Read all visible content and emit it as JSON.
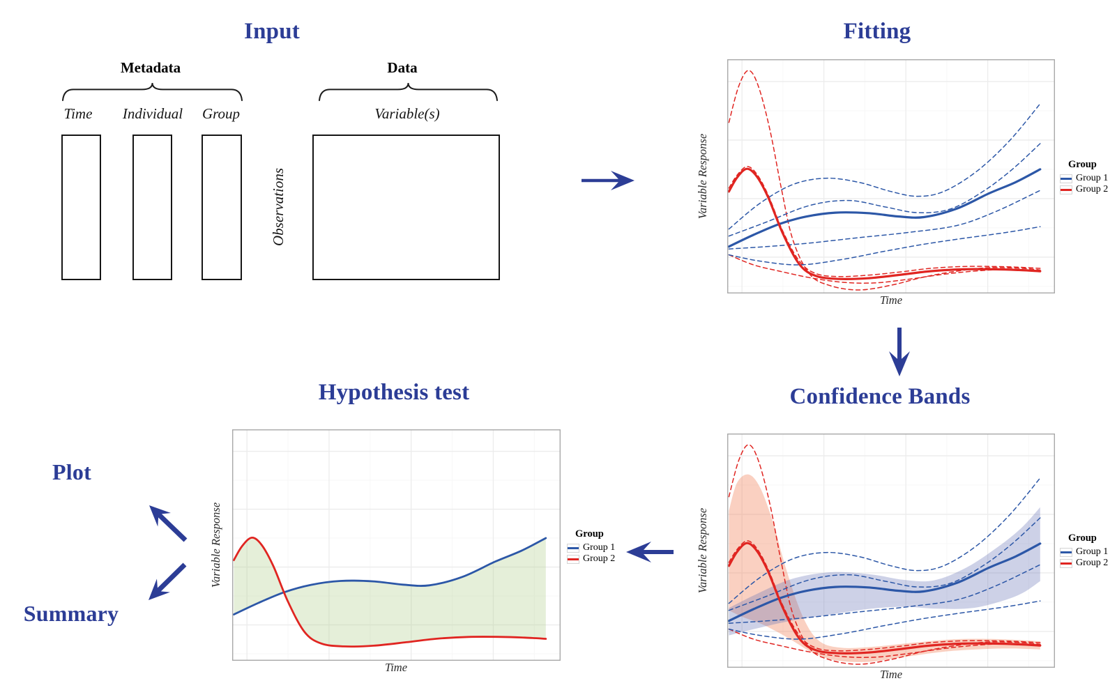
{
  "palette": {
    "navy": "#2c3d96",
    "blue": "#2c57a7",
    "red": "#e02521",
    "blue_band": "rgba(99,111,180,0.32)",
    "red_band": "rgba(243,132,92,0.38)",
    "green_fill": "rgba(173,204,138,0.32)",
    "panel_border": "#a8a8a8",
    "grid_major": "#ececec",
    "grid_minor": "#f7f7f7"
  },
  "titles": {
    "input": "Input",
    "fitting": "Fitting",
    "confidence": "Confidence Bands",
    "hypothesis": "Hypothesis test",
    "plot": "Plot",
    "summary": "Summary"
  },
  "input": {
    "metadata_label": "Metadata",
    "data_label": "Data",
    "columns": [
      "Time",
      "Individual",
      "Group"
    ],
    "variables_label": "Variable(s)",
    "observations_label": "Observations"
  },
  "charts": {
    "axis": {
      "x": "Time",
      "y": "Variable Response"
    },
    "legend": {
      "title": "Group",
      "items": [
        {
          "label": "Group 1",
          "color": "#2c57a7"
        },
        {
          "label": "Group 2",
          "color": "#e02521"
        }
      ]
    }
  },
  "curves": {
    "blue_mean": [
      [
        0.005,
        0.8
      ],
      [
        0.08,
        0.75
      ],
      [
        0.16,
        0.703
      ],
      [
        0.24,
        0.672
      ],
      [
        0.33,
        0.655
      ],
      [
        0.43,
        0.657
      ],
      [
        0.52,
        0.671
      ],
      [
        0.6,
        0.674
      ],
      [
        0.7,
        0.638
      ],
      [
        0.8,
        0.572
      ],
      [
        0.88,
        0.525
      ],
      [
        0.955,
        0.47
      ]
    ],
    "red_mean": [
      [
        0.005,
        0.565
      ],
      [
        0.03,
        0.505
      ],
      [
        0.06,
        0.468
      ],
      [
        0.09,
        0.5
      ],
      [
        0.125,
        0.59
      ],
      [
        0.17,
        0.745
      ],
      [
        0.22,
        0.875
      ],
      [
        0.27,
        0.925
      ],
      [
        0.34,
        0.938
      ],
      [
        0.43,
        0.935
      ],
      [
        0.53,
        0.92
      ],
      [
        0.62,
        0.905
      ],
      [
        0.72,
        0.897
      ],
      [
        0.82,
        0.897
      ],
      [
        0.89,
        0.9
      ],
      [
        0.955,
        0.905
      ]
    ],
    "blue_ind_1": [
      [
        0.005,
        0.725
      ],
      [
        0.1,
        0.615
      ],
      [
        0.2,
        0.535
      ],
      [
        0.3,
        0.508
      ],
      [
        0.4,
        0.525
      ],
      [
        0.5,
        0.565
      ],
      [
        0.58,
        0.585
      ],
      [
        0.66,
        0.565
      ],
      [
        0.76,
        0.48
      ],
      [
        0.86,
        0.35
      ],
      [
        0.955,
        0.19
      ]
    ],
    "blue_ind_2": [
      [
        0.005,
        0.755
      ],
      [
        0.12,
        0.695
      ],
      [
        0.25,
        0.625
      ],
      [
        0.37,
        0.603
      ],
      [
        0.48,
        0.63
      ],
      [
        0.58,
        0.655
      ],
      [
        0.68,
        0.64
      ],
      [
        0.78,
        0.565
      ],
      [
        0.87,
        0.47
      ],
      [
        0.955,
        0.36
      ]
    ],
    "blue_ind_3": [
      [
        0.005,
        0.81
      ],
      [
        0.12,
        0.8
      ],
      [
        0.25,
        0.785
      ],
      [
        0.4,
        0.762
      ],
      [
        0.55,
        0.74
      ],
      [
        0.7,
        0.71
      ],
      [
        0.82,
        0.65
      ],
      [
        0.955,
        0.56
      ]
    ],
    "blue_ind_4": [
      [
        0.005,
        0.835
      ],
      [
        0.1,
        0.862
      ],
      [
        0.22,
        0.878
      ],
      [
        0.35,
        0.855
      ],
      [
        0.48,
        0.82
      ],
      [
        0.6,
        0.79
      ],
      [
        0.72,
        0.765
      ],
      [
        0.85,
        0.74
      ],
      [
        0.955,
        0.715
      ]
    ],
    "red_ind_1": [
      [
        0.005,
        0.27
      ],
      [
        0.035,
        0.115
      ],
      [
        0.065,
        0.048
      ],
      [
        0.095,
        0.115
      ],
      [
        0.13,
        0.3
      ],
      [
        0.165,
        0.55
      ],
      [
        0.2,
        0.77
      ],
      [
        0.25,
        0.915
      ],
      [
        0.31,
        0.965
      ],
      [
        0.4,
        0.985
      ],
      [
        0.5,
        0.965
      ],
      [
        0.6,
        0.93
      ],
      [
        0.7,
        0.905
      ],
      [
        0.8,
        0.89
      ],
      [
        0.9,
        0.893
      ],
      [
        0.955,
        0.9
      ]
    ],
    "red_ind_2": [
      [
        0.005,
        0.55
      ],
      [
        0.03,
        0.495
      ],
      [
        0.06,
        0.458
      ],
      [
        0.09,
        0.49
      ],
      [
        0.125,
        0.58
      ],
      [
        0.17,
        0.735
      ],
      [
        0.22,
        0.862
      ],
      [
        0.27,
        0.915
      ],
      [
        0.34,
        0.928
      ],
      [
        0.43,
        0.922
      ],
      [
        0.53,
        0.908
      ],
      [
        0.62,
        0.893
      ],
      [
        0.72,
        0.885
      ],
      [
        0.82,
        0.885
      ],
      [
        0.89,
        0.888
      ],
      [
        0.955,
        0.893
      ]
    ],
    "red_ind_3": [
      [
        0.005,
        0.835
      ],
      [
        0.08,
        0.878
      ],
      [
        0.16,
        0.905
      ],
      [
        0.25,
        0.932
      ],
      [
        0.35,
        0.952
      ],
      [
        0.45,
        0.955
      ],
      [
        0.55,
        0.94
      ],
      [
        0.65,
        0.92
      ],
      [
        0.75,
        0.905
      ],
      [
        0.85,
        0.898
      ],
      [
        0.955,
        0.903
      ]
    ],
    "band_red_upper": [
      [
        0.005,
        0.33
      ],
      [
        0.03,
        0.21
      ],
      [
        0.065,
        0.175
      ],
      [
        0.1,
        0.23
      ],
      [
        0.14,
        0.38
      ],
      [
        0.18,
        0.58
      ],
      [
        0.23,
        0.78
      ],
      [
        0.28,
        0.885
      ],
      [
        0.35,
        0.915
      ],
      [
        0.45,
        0.91
      ],
      [
        0.57,
        0.893
      ],
      [
        0.7,
        0.878
      ],
      [
        0.83,
        0.878
      ],
      [
        0.955,
        0.887
      ]
    ],
    "band_red_lower": [
      [
        0.005,
        0.755
      ],
      [
        0.05,
        0.785
      ],
      [
        0.1,
        0.81
      ],
      [
        0.15,
        0.845
      ],
      [
        0.2,
        0.885
      ],
      [
        0.26,
        0.935
      ],
      [
        0.33,
        0.968
      ],
      [
        0.43,
        0.975
      ],
      [
        0.55,
        0.952
      ],
      [
        0.67,
        0.93
      ],
      [
        0.79,
        0.92
      ],
      [
        0.87,
        0.918
      ],
      [
        0.955,
        0.922
      ]
    ],
    "band_blue_upper": [
      [
        0.005,
        0.745
      ],
      [
        0.09,
        0.685
      ],
      [
        0.2,
        0.62
      ],
      [
        0.32,
        0.592
      ],
      [
        0.44,
        0.602
      ],
      [
        0.54,
        0.625
      ],
      [
        0.63,
        0.627
      ],
      [
        0.73,
        0.572
      ],
      [
        0.83,
        0.48
      ],
      [
        0.9,
        0.4
      ],
      [
        0.955,
        0.315
      ]
    ],
    "band_blue_lower": [
      [
        0.005,
        0.862
      ],
      [
        0.09,
        0.832
      ],
      [
        0.2,
        0.798
      ],
      [
        0.32,
        0.772
      ],
      [
        0.44,
        0.748
      ],
      [
        0.54,
        0.74
      ],
      [
        0.64,
        0.748
      ],
      [
        0.75,
        0.745
      ],
      [
        0.85,
        0.71
      ],
      [
        0.905,
        0.678
      ],
      [
        0.955,
        0.63
      ]
    ]
  },
  "chart_data": [
    {
      "id": "fitting",
      "type": "line",
      "title": "Fitting",
      "xlabel": "Time",
      "ylabel": "Variable Response",
      "legend": {
        "title": "Group",
        "entries": [
          "Group 1",
          "Group 2"
        ]
      },
      "lw": 3.2,
      "series": [
        {
          "name": "group2-individual-fit-1",
          "color": "red",
          "style": "dashed",
          "curve": "red_ind_1"
        },
        {
          "name": "group2-individual-fit-2",
          "color": "red",
          "style": "dashed",
          "curve": "red_ind_2"
        },
        {
          "name": "group2-individual-fit-3",
          "color": "red",
          "style": "dashed",
          "curve": "red_ind_3"
        },
        {
          "name": "group1-individual-fit-1",
          "color": "blue",
          "style": "dashed",
          "curve": "blue_ind_1"
        },
        {
          "name": "group1-individual-fit-2",
          "color": "blue",
          "style": "dashed",
          "curve": "blue_ind_2"
        },
        {
          "name": "group1-individual-fit-3",
          "color": "blue",
          "style": "dashed",
          "curve": "blue_ind_3"
        },
        {
          "name": "group1-individual-fit-4",
          "color": "blue",
          "style": "dashed",
          "curve": "blue_ind_4"
        },
        {
          "name": "group1-mean-fit",
          "color": "blue",
          "style": "solid",
          "curve": "blue_mean"
        },
        {
          "name": "group2-mean-fit",
          "color": "red",
          "style": "solid",
          "curve": "red_mean"
        }
      ]
    },
    {
      "id": "confidence",
      "type": "line",
      "title": "Confidence Bands",
      "xlabel": "Time",
      "ylabel": "Variable Response",
      "legend": {
        "title": "Group",
        "entries": [
          "Group 1",
          "Group 2"
        ]
      },
      "lw": 3.2,
      "bands": [
        {
          "name": "group2-confidence-band",
          "color": "red",
          "upper": "band_red_upper",
          "lower": "band_red_lower"
        },
        {
          "name": "group1-confidence-band",
          "color": "blue",
          "upper": "band_blue_upper",
          "lower": "band_blue_lower"
        }
      ],
      "series": [
        {
          "name": "group2-individual-fit-1",
          "color": "red",
          "style": "dashed",
          "curve": "red_ind_1"
        },
        {
          "name": "group2-individual-fit-2",
          "color": "red",
          "style": "dashed",
          "curve": "red_ind_2"
        },
        {
          "name": "group2-individual-fit-3",
          "color": "red",
          "style": "dashed",
          "curve": "red_ind_3"
        },
        {
          "name": "group1-individual-fit-1",
          "color": "blue",
          "style": "dashed",
          "curve": "blue_ind_1"
        },
        {
          "name": "group1-individual-fit-2",
          "color": "blue",
          "style": "dashed",
          "curve": "blue_ind_2"
        },
        {
          "name": "group1-individual-fit-3",
          "color": "blue",
          "style": "dashed",
          "curve": "blue_ind_3"
        },
        {
          "name": "group1-individual-fit-4",
          "color": "blue",
          "style": "dashed",
          "curve": "blue_ind_4"
        },
        {
          "name": "group1-mean-fit",
          "color": "blue",
          "style": "solid",
          "curve": "blue_mean"
        },
        {
          "name": "group2-mean-fit",
          "color": "red",
          "style": "solid",
          "curve": "red_mean"
        }
      ]
    },
    {
      "id": "hypothesis",
      "type": "line",
      "title": "Hypothesis test",
      "xlabel": "Time",
      "ylabel": "Variable Response",
      "legend": {
        "title": "Group",
        "entries": [
          "Group 1",
          "Group 2"
        ]
      },
      "lw": 2.8,
      "fill": {
        "name": "difference-region",
        "color": "green",
        "upper": "blue_mean",
        "lower": "red_mean"
      },
      "series": [
        {
          "name": "group1-mean-fit",
          "color": "blue",
          "style": "solid",
          "curve": "blue_mean"
        },
        {
          "name": "group2-mean-fit",
          "color": "red",
          "style": "solid",
          "curve": "red_mean"
        }
      ]
    }
  ]
}
